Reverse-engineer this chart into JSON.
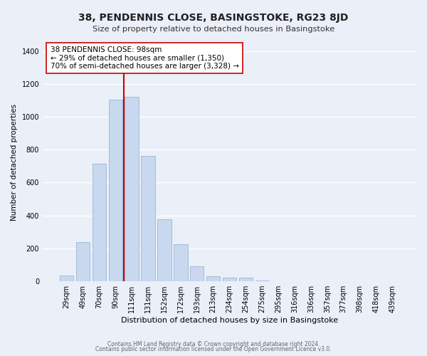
{
  "title": "38, PENDENNIS CLOSE, BASINGSTOKE, RG23 8JD",
  "subtitle": "Size of property relative to detached houses in Basingstoke",
  "xlabel": "Distribution of detached houses by size in Basingstoke",
  "ylabel": "Number of detached properties",
  "bar_labels": [
    "29sqm",
    "49sqm",
    "70sqm",
    "90sqm",
    "111sqm",
    "131sqm",
    "152sqm",
    "172sqm",
    "193sqm",
    "213sqm",
    "234sqm",
    "254sqm",
    "275sqm",
    "295sqm",
    "316sqm",
    "336sqm",
    "357sqm",
    "377sqm",
    "398sqm",
    "418sqm",
    "439sqm"
  ],
  "bar_values": [
    35,
    240,
    715,
    1105,
    1120,
    760,
    375,
    225,
    90,
    30,
    20,
    20,
    5,
    0,
    0,
    0,
    0,
    0,
    0,
    0,
    0
  ],
  "bar_color": "#c8d8ee",
  "bar_edge_color": "#a4bcd8",
  "vline_index": 4,
  "vline_color": "#cc0000",
  "annotation_line1": "38 PENDENNIS CLOSE: 98sqm",
  "annotation_line2": "← 29% of detached houses are smaller (1,350)",
  "annotation_line3": "70% of semi-detached houses are larger (3,328) →",
  "annotation_box_color": "#ffffff",
  "annotation_box_edge": "#cc0000",
  "ylim": [
    0,
    1450
  ],
  "yticks": [
    0,
    200,
    400,
    600,
    800,
    1000,
    1200,
    1400
  ],
  "footer1": "Contains HM Land Registry data © Crown copyright and database right 2024.",
  "footer2": "Contains public sector information licensed under the Open Government Licence v3.0.",
  "bg_color": "#eaeff8",
  "grid_color": "#ffffff"
}
